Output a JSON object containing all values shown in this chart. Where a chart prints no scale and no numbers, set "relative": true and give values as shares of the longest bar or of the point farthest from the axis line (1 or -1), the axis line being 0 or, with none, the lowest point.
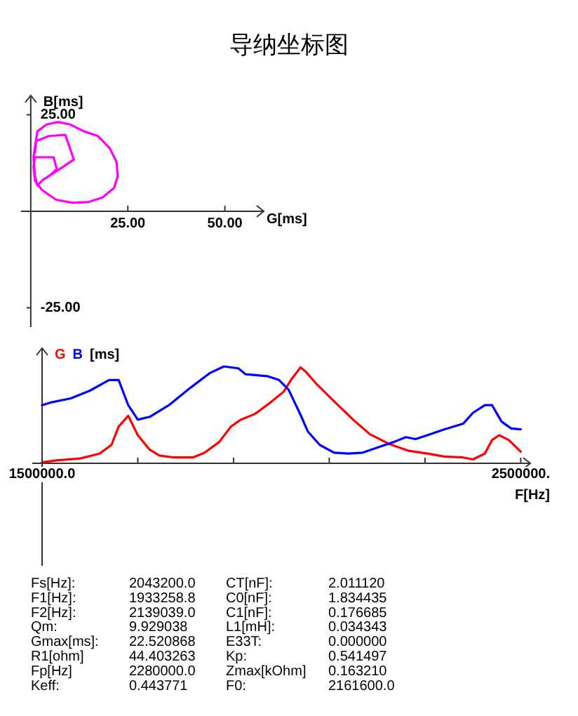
{
  "chart_data": [
    {
      "type": "line",
      "title": "导纳坐标图",
      "xlabel": "G[ms]",
      "ylabel": "B[ms]",
      "x": [
        1.1,
        1.4,
        4.7,
        8.9,
        11.1,
        6.5,
        3.1,
        1.7,
        1.1,
        0.7,
        1.7,
        4.1,
        7.1,
        10.1,
        13.7,
        17.3,
        20.3,
        22.1,
        22.4,
        21.5,
        18.5,
        14.9,
        10.7,
        6.5,
        2.9,
        1.1,
        0.7,
        1.1,
        5.9,
        6.7,
        4.7,
        3.1
      ],
      "series": [
        {
          "color": "#ff00ff",
          "values": [
            15.2,
            18.2,
            19.5,
            19.8,
            13.4,
            10.3,
            8.1,
            6.7,
            9.1,
            14.0,
            20.7,
            22.5,
            23.1,
            22.5,
            20.7,
            19.5,
            16.4,
            12.8,
            9.1,
            6.1,
            3.6,
            2.4,
            2.2,
            3.0,
            5.5,
            7.9,
            11.6,
            14.0,
            14.0,
            10.9,
            9.1,
            8.1
          ]
        }
      ],
      "xlim": [
        -2.5,
        60
      ],
      "ylim": [
        -30,
        30
      ],
      "xticks": [
        {
          "value": 25,
          "label": "25.00"
        },
        {
          "value": 50,
          "label": "50.00"
        }
      ],
      "yticks": [
        {
          "value": 25,
          "label": "25.00"
        },
        {
          "value": -25,
          "label": "-25.00"
        }
      ]
    },
    {
      "type": "line",
      "xlabel": "F[Hz]",
      "ylabel": "[ms]",
      "relative": true,
      "series": [
        {
          "name": "G",
          "color": "#ff0000",
          "x": [
            1500000,
            1530000,
            1580000,
            1620000,
            1645000,
            1660000,
            1680000,
            1700000,
            1725000,
            1745000,
            1775000,
            1815000,
            1840000,
            1870000,
            1895000,
            1915000,
            1945000,
            1975000,
            2005000,
            2020000,
            2040000,
            2050000,
            2075000,
            2110000,
            2150000,
            2185000,
            2225000,
            2265000,
            2305000,
            2340000,
            2380000,
            2400000,
            2425000,
            2440000,
            2455000,
            2475000,
            2500000
          ],
          "values": [
            0.01,
            0.03,
            0.05,
            0.1,
            0.19,
            0.38,
            0.49,
            0.29,
            0.14,
            0.08,
            0.06,
            0.06,
            0.11,
            0.22,
            0.38,
            0.45,
            0.51,
            0.62,
            0.74,
            0.86,
            0.99,
            0.95,
            0.81,
            0.64,
            0.45,
            0.3,
            0.2,
            0.13,
            0.1,
            0.07,
            0.06,
            0.04,
            0.1,
            0.24,
            0.29,
            0.24,
            0.12
          ]
        },
        {
          "name": "B",
          "color": "#0000ff",
          "x": [
            1500000,
            1520000,
            1560000,
            1600000,
            1640000,
            1660000,
            1680000,
            1700000,
            1725000,
            1765000,
            1810000,
            1850000,
            1880000,
            1910000,
            1925000,
            1970000,
            1995000,
            2015000,
            2040000,
            2055000,
            2080000,
            2110000,
            2140000,
            2170000,
            2205000,
            2235000,
            2260000,
            2280000,
            2305000,
            2340000,
            2380000,
            2400000,
            2425000,
            2440000,
            2460000,
            2480000,
            2500000
          ],
          "values": [
            0.6,
            0.63,
            0.67,
            0.75,
            0.86,
            0.86,
            0.6,
            0.45,
            0.48,
            0.6,
            0.78,
            0.93,
            1,
            0.98,
            0.92,
            0.9,
            0.86,
            0.76,
            0.5,
            0.33,
            0.19,
            0.11,
            0.1,
            0.11,
            0.17,
            0.22,
            0.27,
            0.25,
            0.29,
            0.35,
            0.41,
            0.52,
            0.6,
            0.6,
            0.43,
            0.36,
            0.35
          ]
        }
      ],
      "xlim": [
        1500000,
        2520000
      ],
      "xticks": [
        {
          "value": 1500000,
          "label": "1500000.0"
        },
        {
          "value": 1700000,
          "label": null
        },
        {
          "value": 1900000,
          "label": null
        },
        {
          "value": 2100000,
          "label": null
        },
        {
          "value": 2300000,
          "label": null
        },
        {
          "value": 2500000,
          "label": "2500000."
        }
      ]
    },
    {
      "type": "other",
      "annotations": [
        "Fs[Hz]:",
        "2043200.0",
        "CT[nF]:",
        "2.011120",
        "F1[Hz]:",
        "1933258.8",
        "C0[nF]:",
        "1.834435",
        "F2[Hz]:",
        "2139039.0",
        "C1[nF]:",
        "0.176685",
        "Qm:",
        "9.929038",
        "L1[mH]:",
        "0.034343",
        "Gmax[ms]:",
        "22.520868",
        "E33T:",
        "0.000000",
        "R1[ohm]",
        "44.403263",
        "Kp:",
        "0.541497",
        "Fp[Hz]",
        "2280000.0",
        "Zmax[kOhm]",
        "0.163210",
        "Keff:",
        "0.443771",
        "F0:",
        "2161600.0"
      ]
    }
  ]
}
